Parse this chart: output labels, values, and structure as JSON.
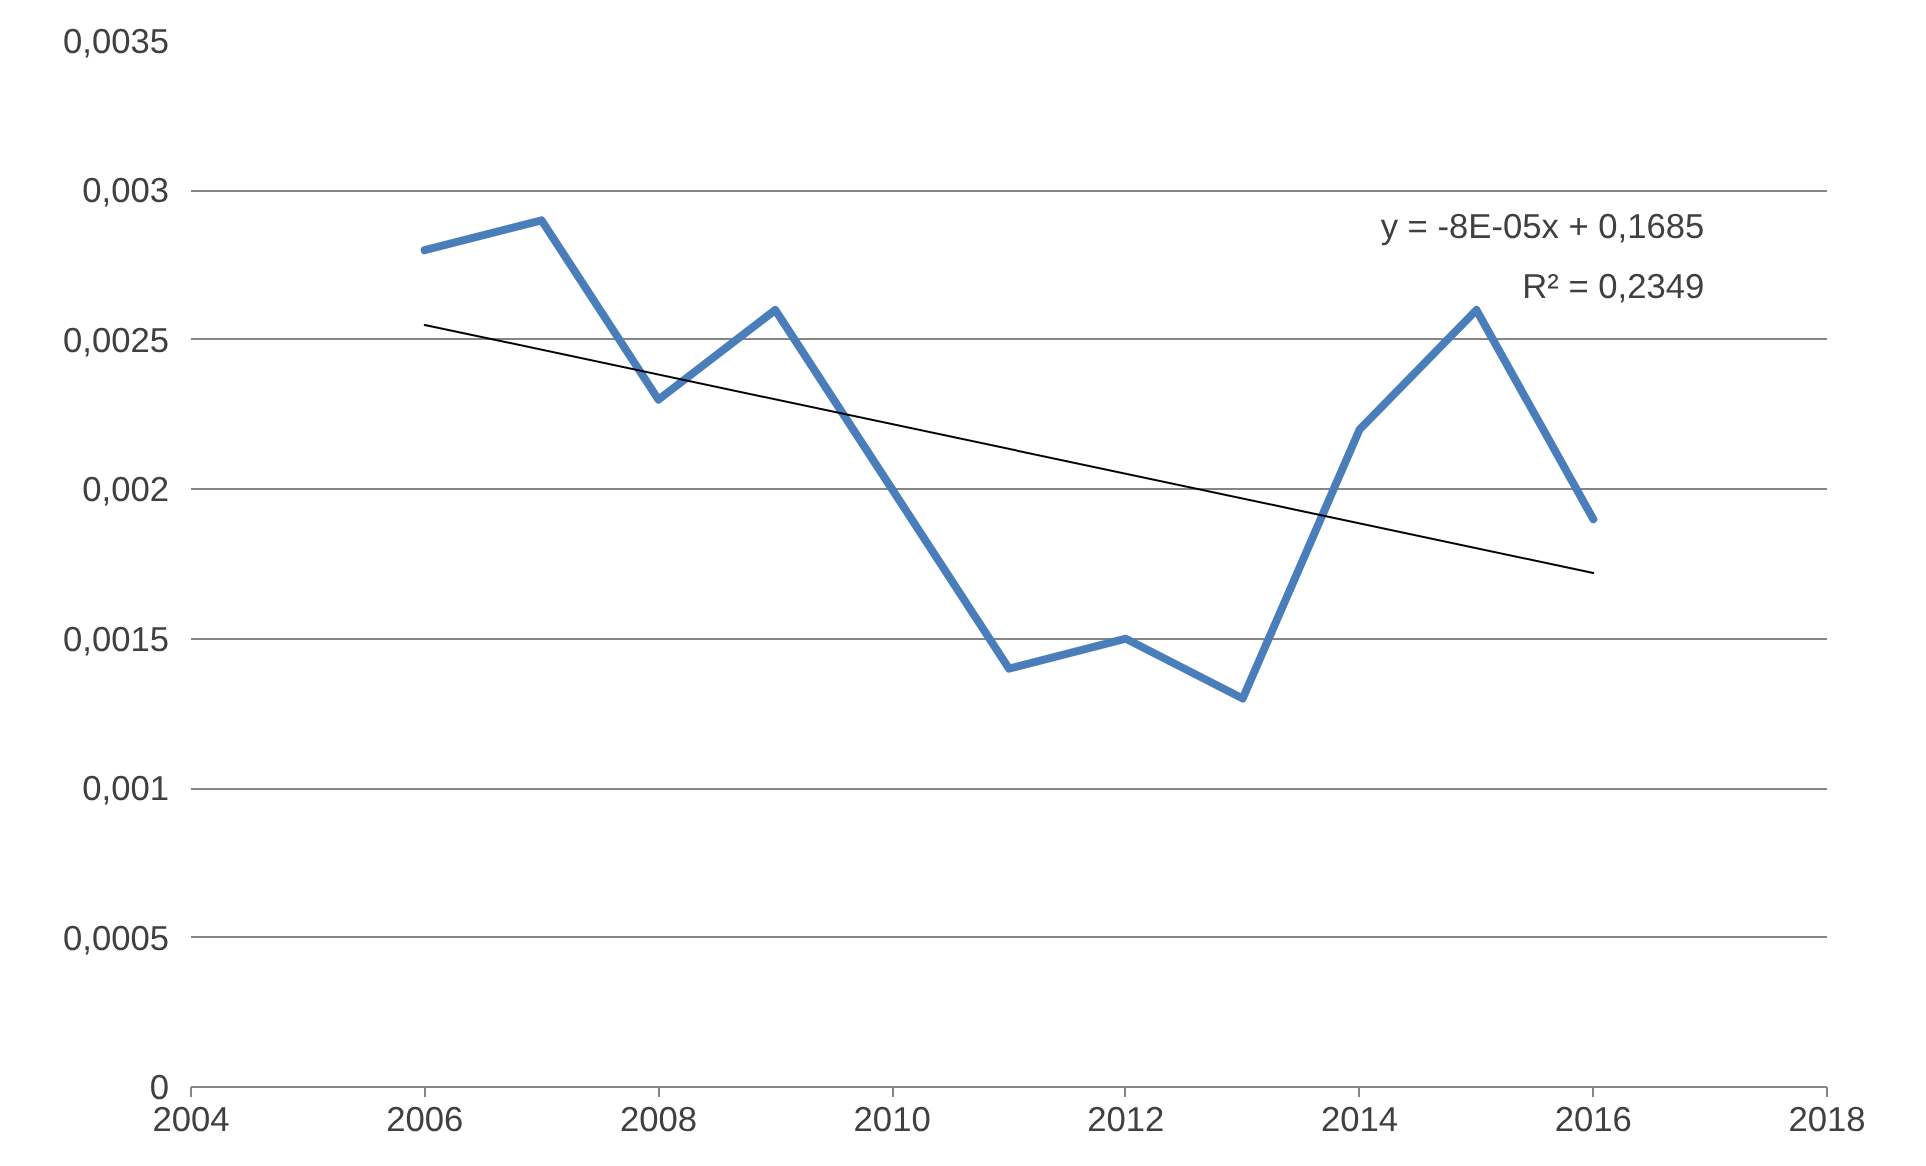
{
  "chart_data": {
    "type": "line",
    "x": [
      2006,
      2007,
      2008,
      2009,
      2010,
      2011,
      2012,
      2013,
      2014,
      2015,
      2016
    ],
    "series": [
      {
        "color": "#4a7ebb",
        "values": [
          0.0028,
          0.0029,
          0.0023,
          0.0026,
          0.002,
          0.0014,
          0.0015,
          0.0013,
          0.0022,
          0.0026,
          0.0019
        ]
      },
      {
        "type": "line",
        "color": "#000000",
        "x": [
          2006,
          2016
        ],
        "values": [
          0.00255,
          0.00172
        ]
      }
    ],
    "xlim": [
      2004,
      2018
    ],
    "xticks": [
      2004,
      2006,
      2008,
      2010,
      2012,
      2014,
      2016,
      2018
    ],
    "ylim": [
      0,
      0.0035
    ],
    "yticks": [
      0,
      {
        "value": 0.0005,
        "label": "0,0005"
      },
      {
        "value": 0.001,
        "label": "0,001"
      },
      {
        "value": 0.0015,
        "label": "0,0015"
      },
      {
        "value": 0.002,
        "label": "0,002"
      },
      {
        "value": 0.0025,
        "label": "0,0025"
      },
      {
        "value": 0.003,
        "label": "0,003"
      },
      {
        "value": 0.0035,
        "label": "0,0035"
      }
    ],
    "grid": "y",
    "marker": "none",
    "line_style": "solid",
    "annotations": [
      "y = -8E-05x + 0,1685",
      "R² = 0,2349"
    ]
  }
}
